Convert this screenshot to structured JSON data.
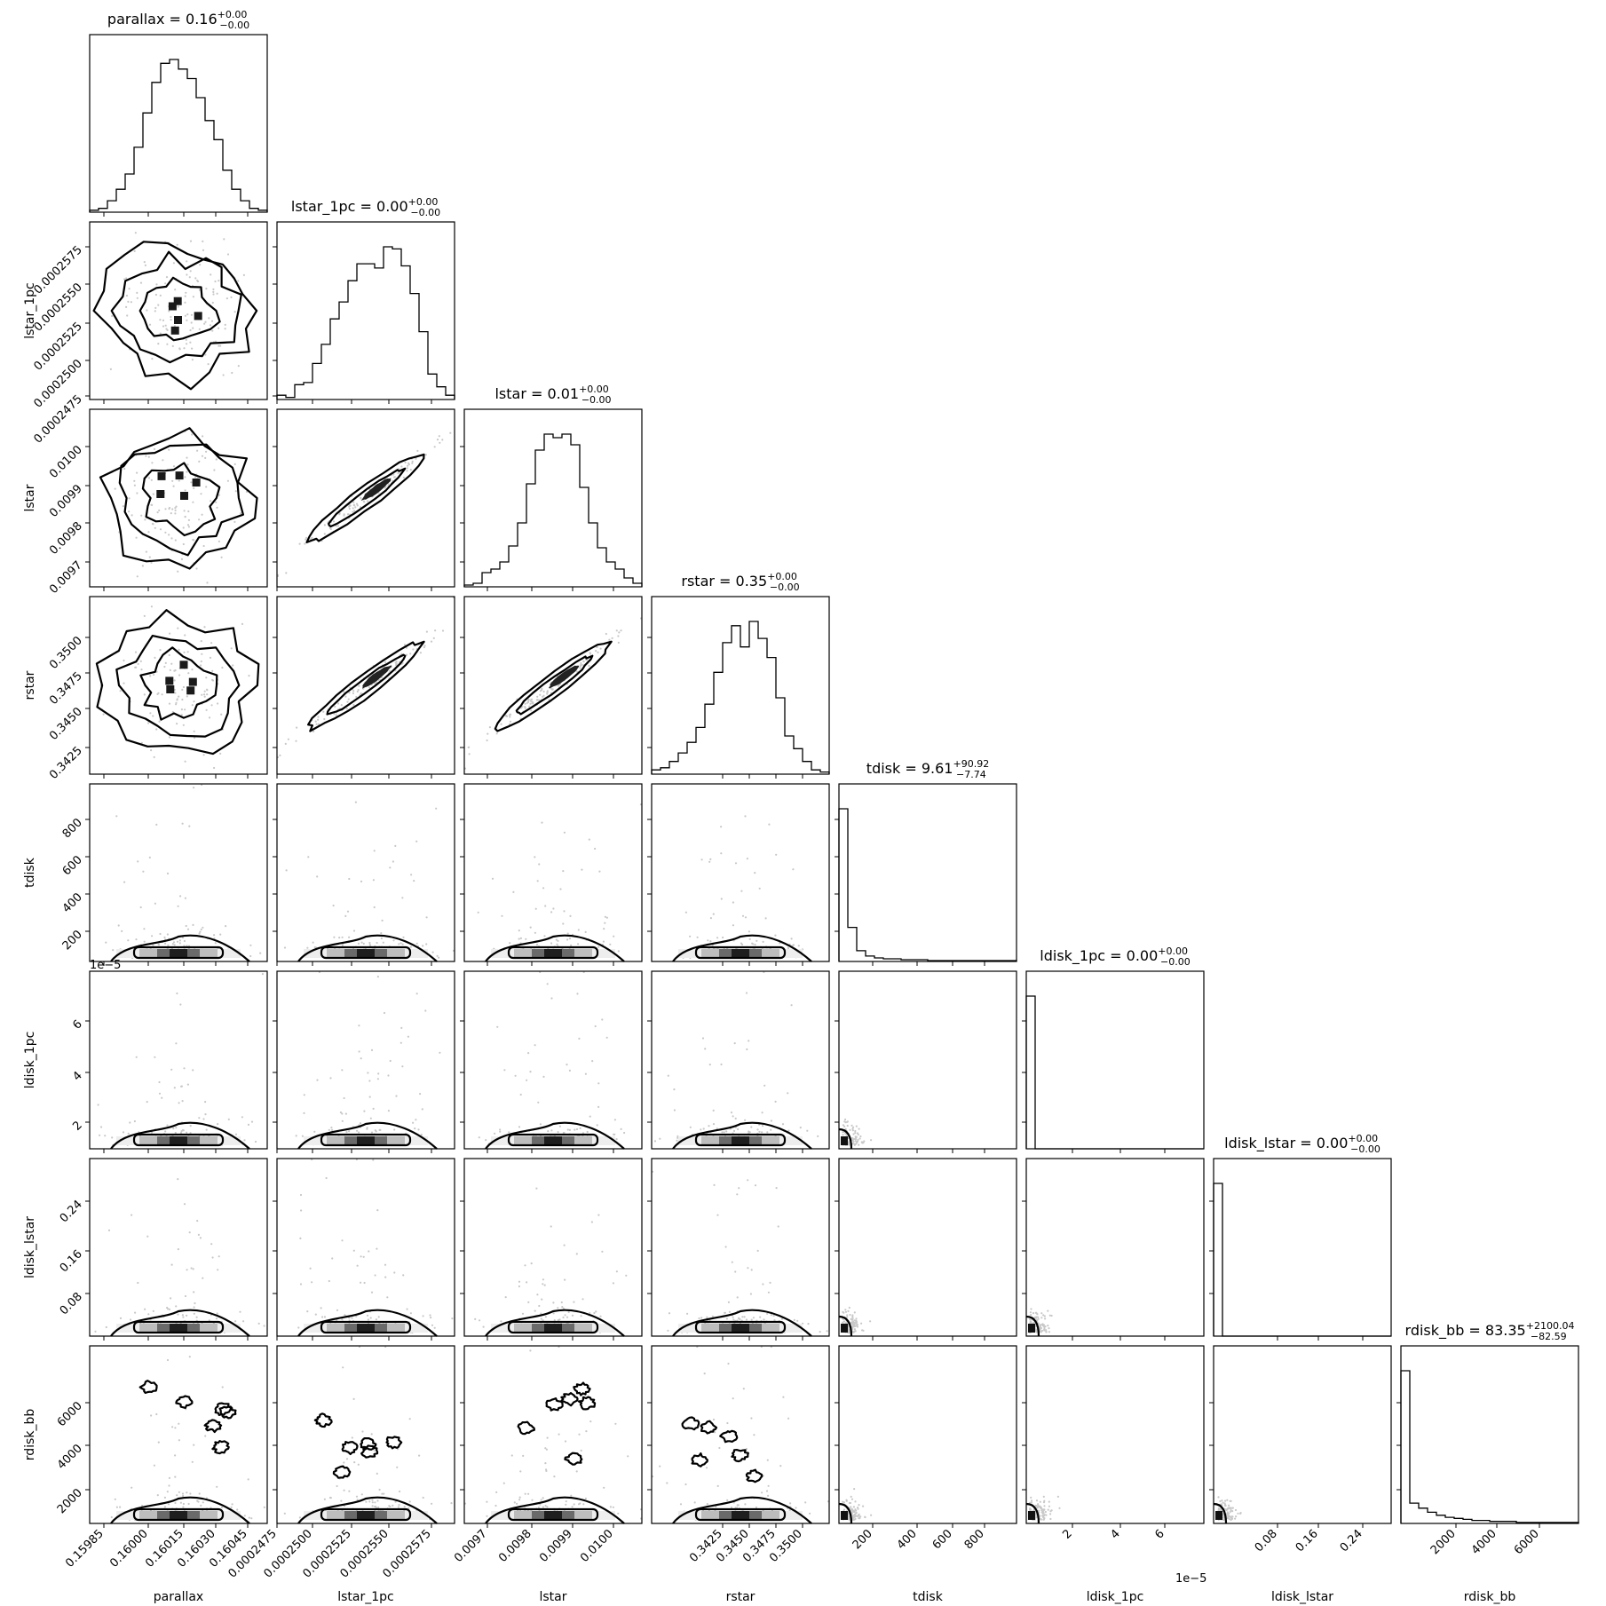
{
  "chart_data": {
    "type": "corner",
    "parameters": [
      "parallax",
      "lstar_1pc",
      "lstar",
      "rstar",
      "tdisk",
      "ldisk_1pc",
      "ldisk_lstar",
      "rdisk_bb"
    ],
    "marginal_titles": [
      {
        "name": "parallax",
        "value": "0.16",
        "plus": "+0.00",
        "minus": "−0.00"
      },
      {
        "name": "lstar_1pc",
        "value": "0.00",
        "plus": "+0.00",
        "minus": "−0.00"
      },
      {
        "name": "lstar",
        "value": "0.01",
        "plus": "+0.00",
        "minus": "−0.00"
      },
      {
        "name": "rstar",
        "value": "0.35",
        "plus": "+0.00",
        "minus": "−0.00"
      },
      {
        "name": "tdisk",
        "value": "9.61",
        "plus": "+90.92",
        "minus": "−7.74"
      },
      {
        "name": "ldisk_1pc",
        "value": "0.00",
        "plus": "+0.00",
        "minus": "−0.00"
      },
      {
        "name": "ldisk_lstar",
        "value": "0.00",
        "plus": "+0.00",
        "minus": "−0.00"
      },
      {
        "name": "rdisk_bb",
        "value": "83.35",
        "plus": "+2100.04",
        "minus": "−82.59"
      }
    ],
    "x_axis_labels": [
      "parallax",
      "lstar_1pc",
      "lstar",
      "rstar",
      "tdisk",
      "ldisk_1pc",
      "ldisk_lstar",
      "rdisk_bb"
    ],
    "y_axis_labels": [
      "lstar_1pc",
      "lstar",
      "rstar",
      "tdisk",
      "ldisk_1pc",
      "ldisk_lstar",
      "rdisk_bb"
    ],
    "x_ticks": [
      [
        "0.15985",
        "0.16000",
        "0.16015",
        "0.16030",
        "0.16045"
      ],
      [
        "0.0002475",
        "0.0002500",
        "0.0002525",
        "0.0002550",
        "0.0002575"
      ],
      [
        "0.0097",
        "0.0098",
        "0.0099",
        "0.0100"
      ],
      [
        "0.3425",
        "0.3450",
        "0.3475",
        "0.3500"
      ],
      [
        "200",
        "400",
        "600",
        "800"
      ],
      [
        "2",
        "4",
        "6"
      ],
      [
        "0.08",
        "0.16",
        "0.24"
      ],
      [
        "2000",
        "4000",
        "6000"
      ]
    ],
    "y_ticks": [
      [],
      [
        "0.0002475",
        "0.0002500",
        "0.0002525",
        "0.0002550",
        "0.0002575"
      ],
      [
        "0.0097",
        "0.0098",
        "0.0099",
        "0.0100"
      ],
      [
        "0.3425",
        "0.3450",
        "0.3475",
        "0.3500"
      ],
      [
        "200",
        "400",
        "600",
        "800"
      ],
      [
        "2",
        "4",
        "6"
      ],
      [
        "0.08",
        "0.16",
        "0.24"
      ],
      [
        "2000",
        "4000",
        "6000"
      ]
    ],
    "offset_texts": {
      "x_ldisk_1pc": "1e−5",
      "y_ldisk_1pc": "1e−5"
    },
    "histograms": [
      [
        1,
        2,
        6,
        12,
        20,
        34,
        52,
        68,
        78,
        80,
        75,
        70,
        60,
        48,
        38,
        22,
        12,
        6,
        2,
        1
      ],
      [
        2,
        1,
        7,
        8,
        17,
        26,
        38,
        46,
        56,
        64,
        64,
        62,
        72,
        71,
        63,
        50,
        32,
        12,
        6,
        2
      ],
      [
        1,
        2,
        8,
        10,
        14,
        23,
        36,
        58,
        77,
        86,
        84,
        86,
        80,
        56,
        36,
        22,
        14,
        10,
        5,
        2
      ],
      [
        2,
        3,
        6,
        10,
        15,
        22,
        33,
        48,
        62,
        70,
        60,
        72,
        64,
        55,
        36,
        18,
        12,
        6,
        2,
        1
      ],
      [
        170,
        38,
        12,
        6,
        4,
        3,
        3,
        2,
        2,
        2,
        1,
        1,
        1,
        1,
        1,
        1,
        1,
        1,
        1,
        1
      ],
      [
        200,
        0,
        0,
        0,
        0,
        0,
        0,
        0,
        0,
        0,
        0,
        0,
        0,
        0,
        0,
        0,
        0,
        0,
        0,
        0
      ],
      [
        200,
        0,
        0,
        0,
        0,
        0,
        0,
        0,
        0,
        0,
        0,
        0,
        0,
        0,
        0,
        0,
        0,
        0,
        0,
        0
      ],
      [
        150,
        20,
        15,
        11,
        8,
        6,
        5,
        4,
        3,
        3,
        2,
        2,
        2,
        1,
        1,
        1,
        1,
        1,
        1,
        1
      ]
    ]
  }
}
